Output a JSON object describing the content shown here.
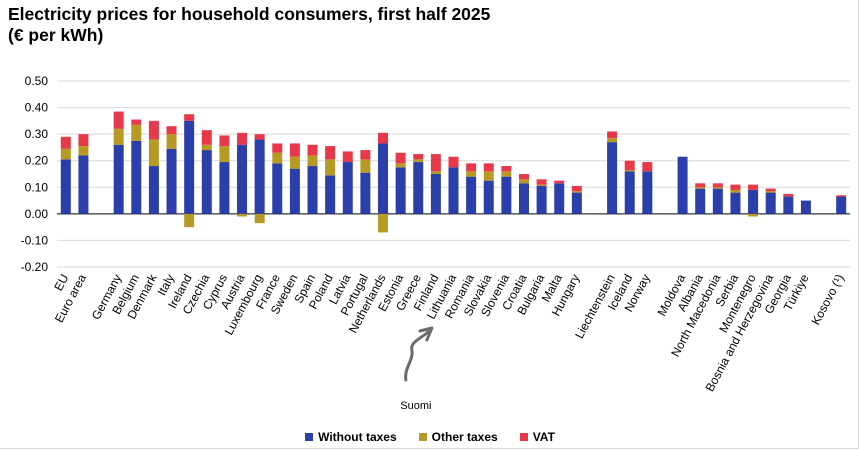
{
  "chart_data": {
    "type": "bar",
    "stacked": true,
    "title_line1": "Electricity prices for household consumers, first half 2025",
    "title_line2": "(€ per kWh)",
    "ylim": [
      -0.2,
      0.5
    ],
    "yticks": [
      "0.50",
      "0.40",
      "0.30",
      "0.20",
      "0.10",
      "0.00",
      "-0.10",
      "-0.20"
    ],
    "ytick_values": [
      0.5,
      0.4,
      0.3,
      0.2,
      0.1,
      0.0,
      -0.1,
      -0.2
    ],
    "categories": [
      "EU",
      "Euro area",
      "",
      "Germany",
      "Belgium",
      "Denmark",
      "Italy",
      "Ireland",
      "Czechia",
      "Cyprus",
      "Austria",
      "Luxembourg",
      "France",
      "Sweden",
      "Spain",
      "Poland",
      "Latvia",
      "Portugal",
      "Netherlands",
      "Estonia",
      "Greece",
      "Finland",
      "Lithuania",
      "Romania",
      "Slovakia",
      "Slovenia",
      "Croatia",
      "Bulgaria",
      "Malta",
      "Hungary",
      "",
      "Liechtenstein",
      "Iceland",
      "Norway",
      "",
      "Moldova",
      "Albania",
      "North Macedonia",
      "Serbia",
      "Montenegro",
      "Bosnia and Herzegovina",
      "Georgia",
      "Türkiye",
      "",
      "Kosovo (¹)"
    ],
    "series": [
      {
        "name": "Without taxes",
        "color": "#2b3faa",
        "values": [
          0.205,
          0.22,
          null,
          0.26,
          0.275,
          0.18,
          0.245,
          0.35,
          0.24,
          0.195,
          0.26,
          0.28,
          0.19,
          0.17,
          0.18,
          0.145,
          0.195,
          0.155,
          0.265,
          0.175,
          0.195,
          0.15,
          0.175,
          0.14,
          0.125,
          0.14,
          0.115,
          0.105,
          0.115,
          0.08,
          null,
          0.27,
          0.16,
          0.16,
          null,
          0.215,
          0.095,
          0.095,
          0.08,
          0.09,
          0.08,
          0.065,
          0.05,
          null,
          0.065
        ]
      },
      {
        "name": "Other taxes",
        "color": "#b79a25",
        "values": [
          0.04,
          0.035,
          null,
          0.06,
          0.06,
          0.1,
          0.055,
          -0.05,
          0.02,
          0.06,
          -0.01,
          -0.035,
          0.04,
          0.045,
          0.04,
          0.06,
          0.0,
          0.05,
          -0.07,
          0.015,
          0.01,
          0.01,
          0.0,
          0.02,
          0.035,
          0.02,
          0.015,
          0.005,
          0.0,
          0.005,
          null,
          0.015,
          0.005,
          0.0,
          null,
          0.0,
          0.005,
          0.005,
          0.01,
          -0.01,
          0.005,
          0.0,
          0.0,
          null,
          0.0
        ]
      },
      {
        "name": "VAT",
        "color": "#e8394a",
        "values": [
          0.045,
          0.045,
          null,
          0.065,
          0.02,
          0.07,
          0.03,
          0.025,
          0.055,
          0.04,
          0.045,
          0.02,
          0.035,
          0.05,
          0.04,
          0.05,
          0.04,
          0.035,
          0.04,
          0.04,
          0.02,
          0.065,
          0.04,
          0.03,
          0.03,
          0.02,
          0.02,
          0.02,
          0.01,
          0.02,
          null,
          0.025,
          0.035,
          0.035,
          null,
          0.0,
          0.015,
          0.015,
          0.02,
          0.02,
          0.01,
          0.01,
          0.0,
          null,
          0.005
        ]
      }
    ],
    "legend_position": "bottom-center",
    "annotation": {
      "text": "Suomi",
      "target": "Finland"
    }
  }
}
